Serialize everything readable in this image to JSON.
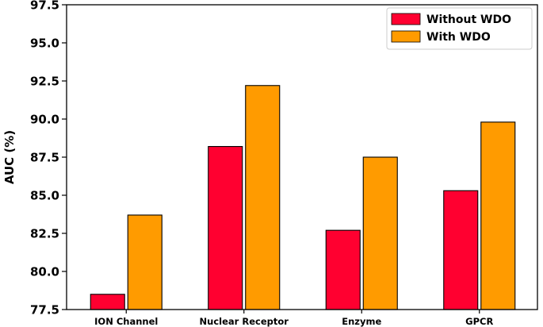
{
  "chart_data": {
    "type": "bar",
    "title": "",
    "xlabel": "",
    "ylabel": "AUC (%)",
    "ylim": [
      77.5,
      97.5
    ],
    "yticks": [
      "77.5",
      "80.0",
      "82.5",
      "85.0",
      "87.5",
      "90.0",
      "92.5",
      "95.0",
      "97.5"
    ],
    "categories": [
      "ION Channel",
      "Nuclear Receptor",
      "Enzyme",
      "GPCR"
    ],
    "series": [
      {
        "name": "Without WDO",
        "color": "#ff0030",
        "values": [
          78.5,
          88.2,
          82.7,
          85.3
        ]
      },
      {
        "name": "With WDO",
        "color": "#ff9b00",
        "values": [
          83.7,
          92.2,
          87.5,
          89.8
        ]
      }
    ],
    "legend_position": "top-right",
    "grid": false
  }
}
